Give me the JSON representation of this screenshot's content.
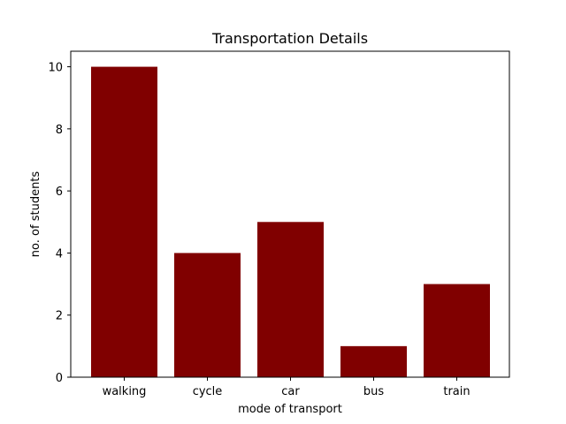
{
  "chart_data": {
    "type": "bar",
    "title": "Transportation Details",
    "xlabel": "mode of transport",
    "ylabel": "no. of students",
    "categories": [
      "walking",
      "cycle",
      "car",
      "bus",
      "train"
    ],
    "values": [
      10,
      4,
      5,
      1,
      3
    ],
    "ylim": [
      0,
      10.5
    ],
    "yticks": [
      0,
      2,
      4,
      6,
      8,
      10
    ],
    "bar_color": "#800000",
    "grid": false
  }
}
